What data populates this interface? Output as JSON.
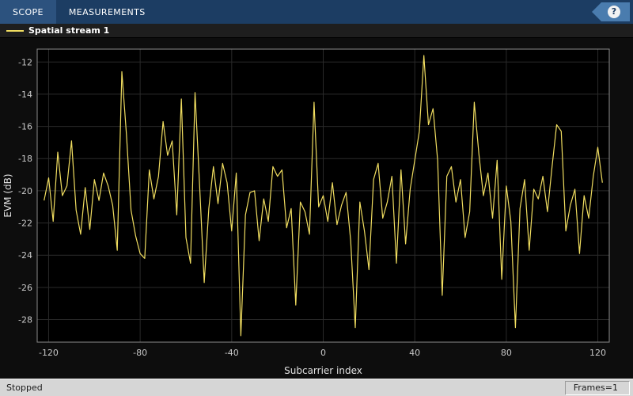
{
  "toolbar": {
    "tabs": [
      {
        "label": "SCOPE"
      },
      {
        "label": "MEASUREMENTS"
      }
    ],
    "help_label": "?"
  },
  "legend": {
    "items": [
      {
        "label": "Spatial stream 1",
        "color": "#f0dd60"
      }
    ]
  },
  "status": {
    "left": "Stopped",
    "right": "Frames=1"
  },
  "colors": {
    "toolbar_bg": "#1c3d63",
    "toolbar_tab_active_bg": "#2c527e",
    "help_bg": "#4a7cae",
    "legend_bg": "#1e1e1e",
    "figure_bg": "#0d0d0d",
    "plot_bg": "#000000",
    "grid": "#2a2a2a",
    "axis": "#8c8c8c",
    "tick": "#c8c8c8",
    "label": "#e0e0e0",
    "line": "#f0dd60",
    "status_bg": "#d6d6d6"
  },
  "chart_data": {
    "type": "line",
    "title": "",
    "xlabel": "Subcarrier index",
    "ylabel": "EVM (dB)",
    "xlim": [
      -125,
      125
    ],
    "ylim": [
      -29.4,
      -11.2
    ],
    "xticks": [
      -120,
      -80,
      -40,
      0,
      40,
      80,
      120
    ],
    "yticks": [
      -28,
      -26,
      -24,
      -22,
      -20,
      -18,
      -16,
      -14,
      -12
    ],
    "grid": true,
    "legend_position": "top-strip",
    "series": [
      {
        "name": "Spatial stream 1",
        "color": "#f0dd60",
        "x": [
          -122,
          -120,
          -118,
          -116,
          -114,
          -112,
          -110,
          -108,
          -106,
          -104,
          -102,
          -100,
          -98,
          -96,
          -94,
          -92,
          -90,
          -88,
          -86,
          -84,
          -82,
          -80,
          -78,
          -76,
          -74,
          -72,
          -70,
          -68,
          -66,
          -64,
          -62,
          -60,
          -58,
          -56,
          -54,
          -52,
          -50,
          -48,
          -46,
          -44,
          -42,
          -40,
          -38,
          -36,
          -34,
          -32,
          -30,
          -28,
          -26,
          -24,
          -22,
          -20,
          -18,
          -16,
          -14,
          -12,
          -10,
          -8,
          -6,
          -4,
          -2,
          0,
          2,
          4,
          6,
          8,
          10,
          12,
          14,
          16,
          18,
          20,
          22,
          24,
          26,
          28,
          30,
          32,
          34,
          36,
          38,
          40,
          42,
          44,
          46,
          48,
          50,
          52,
          54,
          56,
          58,
          60,
          62,
          64,
          66,
          68,
          70,
          72,
          74,
          76,
          78,
          80,
          82,
          84,
          86,
          88,
          90,
          92,
          94,
          96,
          98,
          100,
          102,
          104,
          106,
          108,
          110,
          112,
          114,
          116,
          118,
          120,
          122
        ],
        "y": [
          -20.6,
          -19.2,
          -21.9,
          -17.6,
          -20.3,
          -19.7,
          -16.9,
          -21.2,
          -22.7,
          -19.8,
          -22.4,
          -19.3,
          -20.6,
          -18.9,
          -19.7,
          -20.9,
          -23.7,
          -12.6,
          -16.5,
          -21.2,
          -22.8,
          -23.9,
          -24.2,
          -18.7,
          -20.5,
          -19.1,
          -15.7,
          -17.8,
          -16.9,
          -21.5,
          -14.3,
          -22.9,
          -24.5,
          -13.9,
          -19.7,
          -25.7,
          -21.1,
          -18.5,
          -20.8,
          -18.3,
          -19.5,
          -22.5,
          -18.9,
          -29.0,
          -21.5,
          -20.1,
          -20.0,
          -23.1,
          -20.5,
          -21.9,
          -18.5,
          -19.1,
          -18.7,
          -22.3,
          -21.1,
          -27.1,
          -20.7,
          -21.3,
          -22.7,
          -14.5,
          -21.0,
          -20.3,
          -21.9,
          -19.5,
          -22.1,
          -20.9,
          -20.1,
          -23.1,
          -28.5,
          -20.7,
          -22.5,
          -24.9,
          -19.3,
          -18.3,
          -21.7,
          -20.7,
          -19.1,
          -24.5,
          -18.7,
          -23.3,
          -19.9,
          -18.1,
          -16.3,
          -11.6,
          -15.9,
          -14.9,
          -18.1,
          -26.5,
          -19.1,
          -18.5,
          -20.7,
          -19.3,
          -22.9,
          -21.3,
          -14.5,
          -17.7,
          -20.3,
          -18.9,
          -21.7,
          -18.1,
          -25.5,
          -19.7,
          -21.9,
          -28.5,
          -21.1,
          -19.3,
          -23.7,
          -19.9,
          -20.5,
          -19.1,
          -21.3,
          -18.5,
          -15.9,
          -16.3,
          -22.5,
          -20.9,
          -19.9,
          -23.9,
          -20.3,
          -21.7,
          -19.1,
          -17.3,
          -19.5
        ]
      }
    ]
  }
}
